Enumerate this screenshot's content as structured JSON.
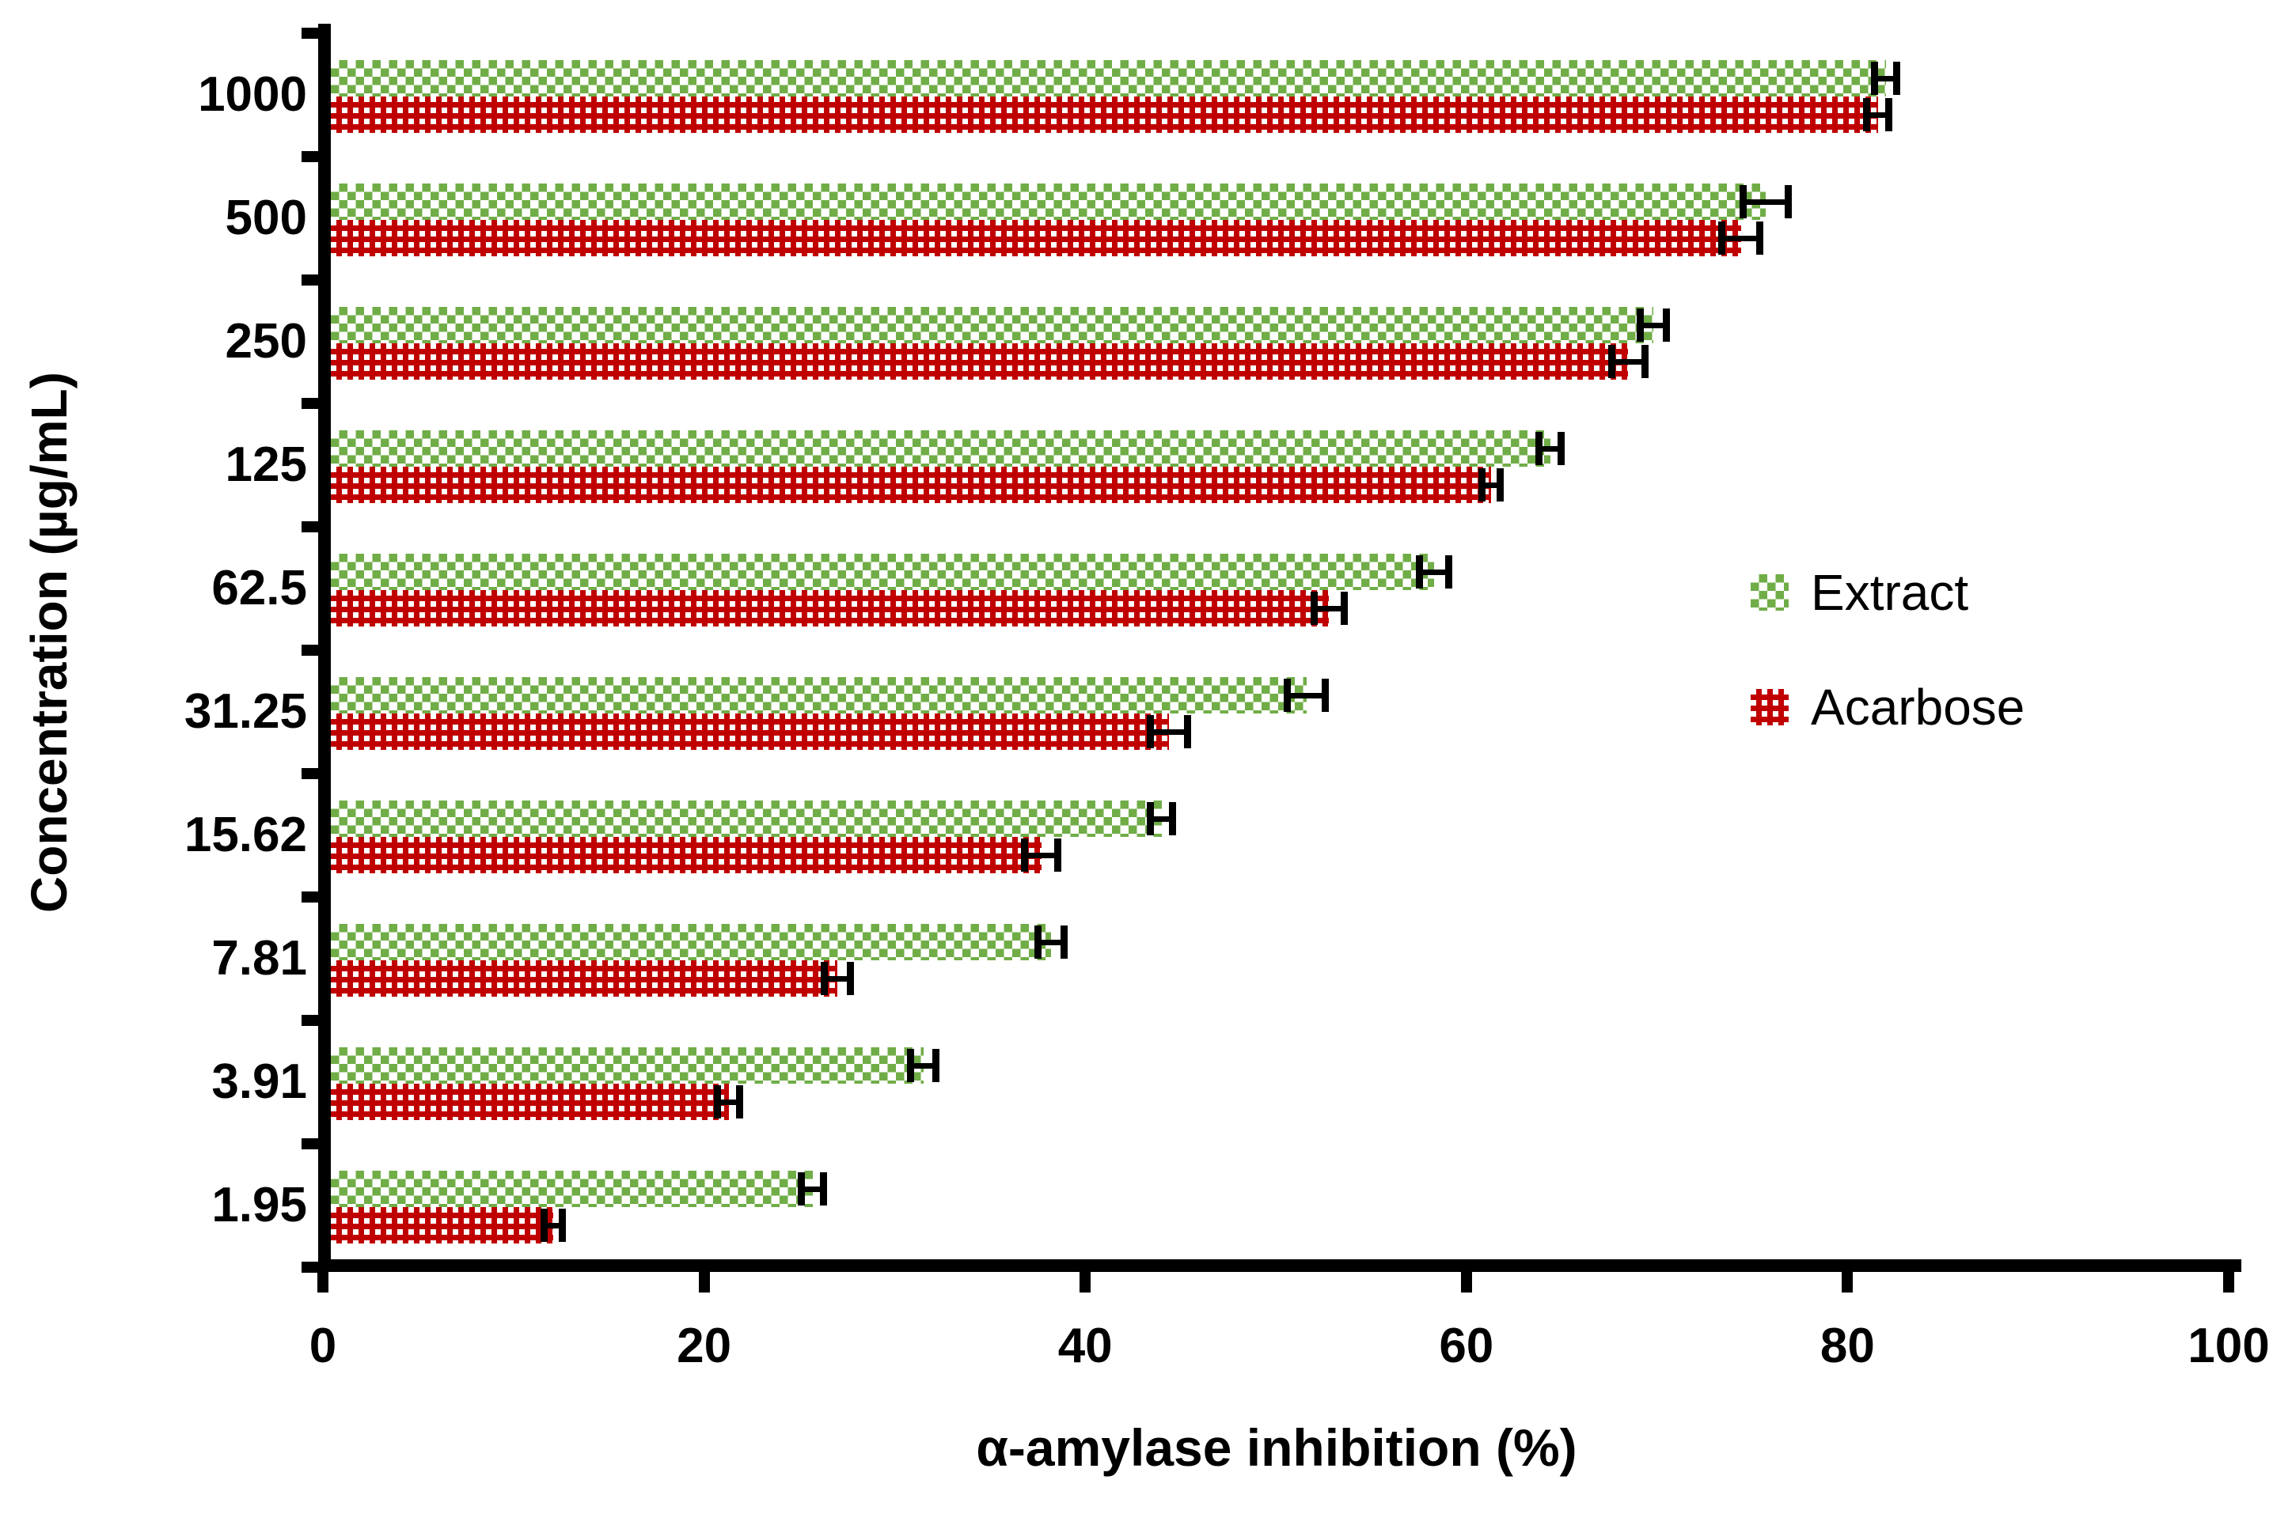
{
  "figure": {
    "background": "#ffffff",
    "axis_color": "#000000"
  },
  "chart_data": {
    "type": "bar",
    "orientation": "horizontal",
    "xlabel": "α-amylase inhibition (%)",
    "ylabel": "Concentration (µg/mL)",
    "xlim": [
      0,
      100
    ],
    "x_ticks": [
      0,
      20,
      40,
      60,
      80,
      100
    ],
    "categories": [
      "1000",
      "500",
      "250",
      "125",
      "62.5",
      "31.25",
      "15.62",
      "7.81",
      "3.91",
      "1.95"
    ],
    "series": [
      {
        "name": "Extract",
        "color": "#70AD47",
        "pattern": "green-weave-on-white",
        "values": [
          82.0,
          75.7,
          69.8,
          64.4,
          58.3,
          51.6,
          44.0,
          38.2,
          31.5,
          25.7
        ],
        "errors": [
          0.6,
          1.2,
          0.7,
          0.6,
          0.8,
          1.0,
          0.6,
          0.7,
          0.7,
          0.6
        ]
      },
      {
        "name": "Acarbose",
        "color": "#C00000",
        "pattern": "white-grid-on-red",
        "values": [
          81.6,
          74.4,
          68.5,
          61.3,
          52.8,
          44.4,
          37.7,
          27.0,
          21.3,
          12.1
        ],
        "errors": [
          0.6,
          1.0,
          0.9,
          0.5,
          0.8,
          1.0,
          0.9,
          0.7,
          0.6,
          0.5
        ]
      }
    ],
    "legend": {
      "position": "right-middle",
      "entries": [
        "Extract",
        "Acarbose"
      ]
    },
    "grid": false,
    "error_bars": true,
    "error_bar_caps": "both-ends"
  }
}
